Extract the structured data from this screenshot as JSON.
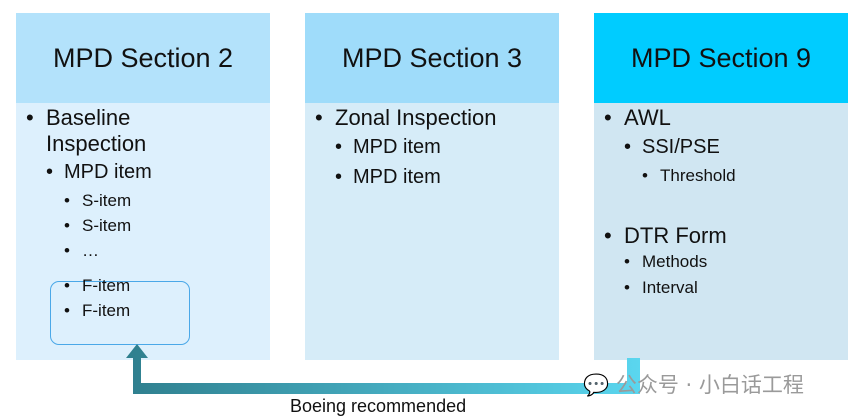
{
  "columns": [
    {
      "title": "MPD Section 2",
      "items": [
        "Baseline",
        "Inspection",
        "MPD item",
        "S-item",
        "S-item",
        "…",
        "F-item",
        "F-item"
      ]
    },
    {
      "title": "MPD Section 3",
      "items": [
        "Zonal Inspection",
        "MPD item",
        "MPD item"
      ]
    },
    {
      "title": "MPD Section 9",
      "items": [
        "AWL",
        "SSI/PSE",
        "Threshold",
        "DTR Form",
        "Methods",
        "Interval"
      ]
    }
  ],
  "arrow_label": "Boeing recommended",
  "watermark": "公众号 · 小白话工程",
  "colors": {
    "header2": "#b3e2fb",
    "header3": "#9fdcfa",
    "header9": "#00ccff",
    "body2": "#ddf0fd",
    "body3": "#d6ecf8",
    "body9": "#d0e6f2",
    "arrow_start": "#5ad6ef",
    "arrow_end": "#2f7f8e"
  }
}
